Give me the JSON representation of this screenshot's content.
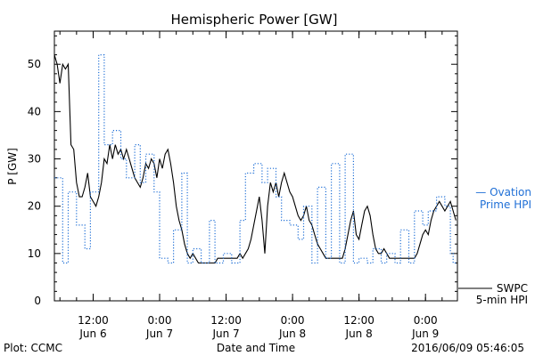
{
  "chart_data": {
    "type": "line",
    "title": "Hemispheric Power [GW]",
    "ylabel": "P [GW]",
    "xlabel": "Date and Time",
    "ylim": [
      0,
      57
    ],
    "yticks": [
      0,
      10,
      20,
      30,
      40,
      50
    ],
    "xticks": [
      {
        "time": "2016-06-06T12:00",
        "line1": "12:00",
        "line2": "Jun 6"
      },
      {
        "time": "2016-06-07T00:00",
        "line1": "0:00",
        "line2": "Jun 7"
      },
      {
        "time": "2016-06-07T12:00",
        "line1": "12:00",
        "line2": "Jun 7"
      },
      {
        "time": "2016-06-08T00:00",
        "line1": "0:00",
        "line2": "Jun 8"
      },
      {
        "time": "2016-06-08T12:00",
        "line1": "12:00",
        "line2": "Jun 8"
      },
      {
        "time": "2016-06-09T00:00",
        "line1": "0:00",
        "line2": "Jun 9"
      }
    ],
    "xlim": [
      "2016-06-06T05:00",
      "2016-06-09T05:46"
    ],
    "series": [
      {
        "name": "SWPC 5-min HPI",
        "label_line1": "SWPC",
        "label_line2": "5-min HPI",
        "color": "#000000",
        "style": "solid",
        "points": [
          [
            "2016-06-06T05:00",
            52
          ],
          [
            "2016-06-06T05:30",
            50
          ],
          [
            "2016-06-06T06:00",
            46
          ],
          [
            "2016-06-06T06:30",
            50
          ],
          [
            "2016-06-06T07:00",
            49
          ],
          [
            "2016-06-06T07:30",
            50
          ],
          [
            "2016-06-06T08:00",
            33
          ],
          [
            "2016-06-06T08:30",
            32
          ],
          [
            "2016-06-06T09:00",
            25
          ],
          [
            "2016-06-06T09:30",
            22
          ],
          [
            "2016-06-06T10:00",
            22
          ],
          [
            "2016-06-06T10:30",
            24
          ],
          [
            "2016-06-06T11:00",
            27
          ],
          [
            "2016-06-06T11:30",
            22
          ],
          [
            "2016-06-06T12:00",
            21
          ],
          [
            "2016-06-06T12:30",
            20
          ],
          [
            "2016-06-06T13:00",
            22
          ],
          [
            "2016-06-06T13:30",
            25
          ],
          [
            "2016-06-06T14:00",
            30
          ],
          [
            "2016-06-06T14:30",
            29
          ],
          [
            "2016-06-06T15:00",
            33
          ],
          [
            "2016-06-06T15:30",
            30
          ],
          [
            "2016-06-06T16:00",
            33
          ],
          [
            "2016-06-06T16:30",
            31
          ],
          [
            "2016-06-06T17:00",
            32
          ],
          [
            "2016-06-06T17:30",
            30
          ],
          [
            "2016-06-06T18:00",
            32
          ],
          [
            "2016-06-06T18:30",
            30
          ],
          [
            "2016-06-06T19:00",
            28
          ],
          [
            "2016-06-06T19:30",
            26
          ],
          [
            "2016-06-06T20:00",
            25
          ],
          [
            "2016-06-06T20:30",
            24
          ],
          [
            "2016-06-06T21:00",
            26
          ],
          [
            "2016-06-06T21:30",
            29
          ],
          [
            "2016-06-06T22:00",
            28
          ],
          [
            "2016-06-06T22:30",
            30
          ],
          [
            "2016-06-06T23:00",
            29
          ],
          [
            "2016-06-06T23:30",
            26
          ],
          [
            "2016-06-07T00:00",
            30
          ],
          [
            "2016-06-07T00:30",
            28
          ],
          [
            "2016-06-07T01:00",
            31
          ],
          [
            "2016-06-07T01:30",
            32
          ],
          [
            "2016-06-07T02:00",
            29
          ],
          [
            "2016-06-07T02:30",
            25
          ],
          [
            "2016-06-07T03:00",
            20
          ],
          [
            "2016-06-07T03:30",
            17
          ],
          [
            "2016-06-07T04:00",
            15
          ],
          [
            "2016-06-07T04:30",
            12
          ],
          [
            "2016-06-07T05:00",
            10
          ],
          [
            "2016-06-07T05:30",
            9
          ],
          [
            "2016-06-07T06:00",
            10
          ],
          [
            "2016-06-07T06:30",
            9
          ],
          [
            "2016-06-07T07:00",
            8
          ],
          [
            "2016-06-07T08:00",
            8
          ],
          [
            "2016-06-07T09:00",
            8
          ],
          [
            "2016-06-07T10:00",
            8
          ],
          [
            "2016-06-07T10:30",
            9
          ],
          [
            "2016-06-07T11:00",
            9
          ],
          [
            "2016-06-07T12:00",
            9
          ],
          [
            "2016-06-07T13:00",
            9
          ],
          [
            "2016-06-07T14:00",
            9
          ],
          [
            "2016-06-07T14:30",
            10
          ],
          [
            "2016-06-07T15:00",
            9
          ],
          [
            "2016-06-07T15:30",
            10
          ],
          [
            "2016-06-07T16:00",
            11
          ],
          [
            "2016-06-07T16:30",
            13
          ],
          [
            "2016-06-07T17:00",
            16
          ],
          [
            "2016-06-07T17:30",
            19
          ],
          [
            "2016-06-07T18:00",
            22
          ],
          [
            "2016-06-07T18:30",
            17
          ],
          [
            "2016-06-07T19:00",
            10
          ],
          [
            "2016-06-07T19:30",
            20
          ],
          [
            "2016-06-07T20:00",
            25
          ],
          [
            "2016-06-07T20:30",
            23
          ],
          [
            "2016-06-07T21:00",
            25
          ],
          [
            "2016-06-07T21:30",
            22
          ],
          [
            "2016-06-07T22:00",
            25
          ],
          [
            "2016-06-07T22:30",
            27
          ],
          [
            "2016-06-07T23:00",
            25
          ],
          [
            "2016-06-07T23:30",
            23
          ],
          [
            "2016-06-08T00:00",
            22
          ],
          [
            "2016-06-08T00:30",
            20
          ],
          [
            "2016-06-08T01:00",
            18
          ],
          [
            "2016-06-08T01:30",
            17
          ],
          [
            "2016-06-08T02:00",
            18
          ],
          [
            "2016-06-08T02:30",
            20
          ],
          [
            "2016-06-08T03:00",
            17
          ],
          [
            "2016-06-08T03:30",
            16
          ],
          [
            "2016-06-08T04:00",
            14
          ],
          [
            "2016-06-08T04:30",
            12
          ],
          [
            "2016-06-08T05:00",
            11
          ],
          [
            "2016-06-08T05:30",
            10
          ],
          [
            "2016-06-08T06:00",
            9
          ],
          [
            "2016-06-08T07:00",
            9
          ],
          [
            "2016-06-08T08:00",
            9
          ],
          [
            "2016-06-08T09:00",
            9
          ],
          [
            "2016-06-08T09:30",
            11
          ],
          [
            "2016-06-08T10:00",
            14
          ],
          [
            "2016-06-08T10:30",
            17
          ],
          [
            "2016-06-08T11:00",
            19
          ],
          [
            "2016-06-08T11:30",
            14
          ],
          [
            "2016-06-08T12:00",
            13
          ],
          [
            "2016-06-08T12:30",
            16
          ],
          [
            "2016-06-08T13:00",
            19
          ],
          [
            "2016-06-08T13:30",
            20
          ],
          [
            "2016-06-08T14:00",
            18
          ],
          [
            "2016-06-08T14:30",
            14
          ],
          [
            "2016-06-08T15:00",
            11
          ],
          [
            "2016-06-08T15:30",
            10
          ],
          [
            "2016-06-08T16:00",
            10
          ],
          [
            "2016-06-08T16:30",
            11
          ],
          [
            "2016-06-08T17:00",
            10
          ],
          [
            "2016-06-08T17:30",
            9
          ],
          [
            "2016-06-08T18:00",
            9
          ],
          [
            "2016-06-08T19:00",
            9
          ],
          [
            "2016-06-08T20:00",
            9
          ],
          [
            "2016-06-08T21:00",
            9
          ],
          [
            "2016-06-08T22:00",
            9
          ],
          [
            "2016-06-08T22:30",
            10
          ],
          [
            "2016-06-08T23:00",
            12
          ],
          [
            "2016-06-08T23:30",
            14
          ],
          [
            "2016-06-09T00:00",
            15
          ],
          [
            "2016-06-09T00:30",
            14
          ],
          [
            "2016-06-09T01:00",
            17
          ],
          [
            "2016-06-09T01:30",
            19
          ],
          [
            "2016-06-09T02:00",
            20
          ],
          [
            "2016-06-09T02:30",
            21
          ],
          [
            "2016-06-09T03:00",
            20
          ],
          [
            "2016-06-09T03:30",
            19
          ],
          [
            "2016-06-09T04:00",
            20
          ],
          [
            "2016-06-09T04:30",
            21
          ],
          [
            "2016-06-09T05:00",
            19
          ],
          [
            "2016-06-09T05:30",
            17
          ]
        ]
      },
      {
        "name": "Ovation Prime HPI",
        "label_line1": "— Ovation",
        "label_line2": "Prime HPI",
        "color": "#1f6fd6",
        "style": "dotted",
        "points": [
          [
            "2016-06-06T05:00",
            26
          ],
          [
            "2016-06-06T06:30",
            26
          ],
          [
            "2016-06-06T06:30",
            8
          ],
          [
            "2016-06-06T07:30",
            8
          ],
          [
            "2016-06-06T07:30",
            23
          ],
          [
            "2016-06-06T09:00",
            23
          ],
          [
            "2016-06-06T09:00",
            16
          ],
          [
            "2016-06-06T10:30",
            16
          ],
          [
            "2016-06-06T10:30",
            11
          ],
          [
            "2016-06-06T11:30",
            11
          ],
          [
            "2016-06-06T11:30",
            23
          ],
          [
            "2016-06-06T13:00",
            23
          ],
          [
            "2016-06-06T13:00",
            52
          ],
          [
            "2016-06-06T14:00",
            52
          ],
          [
            "2016-06-06T14:00",
            33
          ],
          [
            "2016-06-06T15:30",
            33
          ],
          [
            "2016-06-06T15:30",
            36
          ],
          [
            "2016-06-06T17:00",
            36
          ],
          [
            "2016-06-06T17:00",
            30
          ],
          [
            "2016-06-06T18:00",
            30
          ],
          [
            "2016-06-06T18:00",
            26
          ],
          [
            "2016-06-06T19:30",
            26
          ],
          [
            "2016-06-06T19:30",
            33
          ],
          [
            "2016-06-06T20:30",
            33
          ],
          [
            "2016-06-06T20:30",
            25
          ],
          [
            "2016-06-06T21:30",
            25
          ],
          [
            "2016-06-06T21:30",
            31
          ],
          [
            "2016-06-06T23:00",
            31
          ],
          [
            "2016-06-06T23:00",
            23
          ],
          [
            "2016-06-07T00:00",
            23
          ],
          [
            "2016-06-07T00:00",
            9
          ],
          [
            "2016-06-07T01:30",
            9
          ],
          [
            "2016-06-07T01:30",
            8
          ],
          [
            "2016-06-07T02:30",
            8
          ],
          [
            "2016-06-07T02:30",
            15
          ],
          [
            "2016-06-07T04:00",
            15
          ],
          [
            "2016-06-07T04:00",
            27
          ],
          [
            "2016-06-07T05:00",
            27
          ],
          [
            "2016-06-07T05:00",
            8
          ],
          [
            "2016-06-07T06:00",
            8
          ],
          [
            "2016-06-07T06:00",
            11
          ],
          [
            "2016-06-07T07:30",
            11
          ],
          [
            "2016-06-07T07:30",
            8
          ],
          [
            "2016-06-07T09:00",
            8
          ],
          [
            "2016-06-07T09:00",
            17
          ],
          [
            "2016-06-07T10:00",
            17
          ],
          [
            "2016-06-07T10:00",
            8
          ],
          [
            "2016-06-07T11:30",
            8
          ],
          [
            "2016-06-07T11:30",
            10
          ],
          [
            "2016-06-07T13:00",
            10
          ],
          [
            "2016-06-07T13:00",
            8
          ],
          [
            "2016-06-07T14:30",
            8
          ],
          [
            "2016-06-07T14:30",
            17
          ],
          [
            "2016-06-07T15:30",
            17
          ],
          [
            "2016-06-07T15:30",
            27
          ],
          [
            "2016-06-07T17:00",
            27
          ],
          [
            "2016-06-07T17:00",
            29
          ],
          [
            "2016-06-07T18:30",
            29
          ],
          [
            "2016-06-07T18:30",
            25
          ],
          [
            "2016-06-07T19:30",
            25
          ],
          [
            "2016-06-07T19:30",
            28
          ],
          [
            "2016-06-07T21:00",
            28
          ],
          [
            "2016-06-07T21:00",
            22
          ],
          [
            "2016-06-07T22:00",
            22
          ],
          [
            "2016-06-07T22:00",
            17
          ],
          [
            "2016-06-07T23:30",
            17
          ],
          [
            "2016-06-07T23:30",
            16
          ],
          [
            "2016-06-08T01:00",
            16
          ],
          [
            "2016-06-08T01:00",
            13
          ],
          [
            "2016-06-08T02:00",
            13
          ],
          [
            "2016-06-08T02:00",
            20
          ],
          [
            "2016-06-08T03:30",
            20
          ],
          [
            "2016-06-08T03:30",
            8
          ],
          [
            "2016-06-08T04:30",
            8
          ],
          [
            "2016-06-08T04:30",
            24
          ],
          [
            "2016-06-08T06:00",
            24
          ],
          [
            "2016-06-08T06:00",
            9
          ],
          [
            "2016-06-08T07:00",
            9
          ],
          [
            "2016-06-08T07:00",
            29
          ],
          [
            "2016-06-08T08:30",
            29
          ],
          [
            "2016-06-08T08:30",
            8
          ],
          [
            "2016-06-08T09:30",
            8
          ],
          [
            "2016-06-08T09:30",
            31
          ],
          [
            "2016-06-08T11:00",
            31
          ],
          [
            "2016-06-08T11:00",
            8
          ],
          [
            "2016-06-08T12:00",
            8
          ],
          [
            "2016-06-08T12:00",
            9
          ],
          [
            "2016-06-08T13:30",
            9
          ],
          [
            "2016-06-08T13:30",
            8
          ],
          [
            "2016-06-08T14:30",
            8
          ],
          [
            "2016-06-08T14:30",
            11
          ],
          [
            "2016-06-08T16:00",
            11
          ],
          [
            "2016-06-08T16:00",
            8
          ],
          [
            "2016-06-08T17:00",
            8
          ],
          [
            "2016-06-08T17:00",
            10
          ],
          [
            "2016-06-08T18:30",
            10
          ],
          [
            "2016-06-08T18:30",
            8
          ],
          [
            "2016-06-08T19:30",
            8
          ],
          [
            "2016-06-08T19:30",
            15
          ],
          [
            "2016-06-08T21:00",
            15
          ],
          [
            "2016-06-08T21:00",
            8
          ],
          [
            "2016-06-08T22:00",
            8
          ],
          [
            "2016-06-08T22:00",
            19
          ],
          [
            "2016-06-08T23:30",
            19
          ],
          [
            "2016-06-08T23:30",
            16
          ],
          [
            "2016-06-09T00:30",
            16
          ],
          [
            "2016-06-09T00:30",
            19
          ],
          [
            "2016-06-09T02:00",
            19
          ],
          [
            "2016-06-09T02:00",
            22
          ],
          [
            "2016-06-09T03:30",
            22
          ],
          [
            "2016-06-09T03:30",
            20
          ],
          [
            "2016-06-09T04:30",
            20
          ],
          [
            "2016-06-09T04:30",
            10
          ],
          [
            "2016-06-09T05:00",
            10
          ],
          [
            "2016-06-09T05:00",
            8
          ],
          [
            "2016-06-09T05:46",
            8
          ]
        ]
      }
    ]
  },
  "footer": {
    "plot_credit": "Plot: CCMC",
    "timestamp": "2016/06/09 05:46:05"
  }
}
